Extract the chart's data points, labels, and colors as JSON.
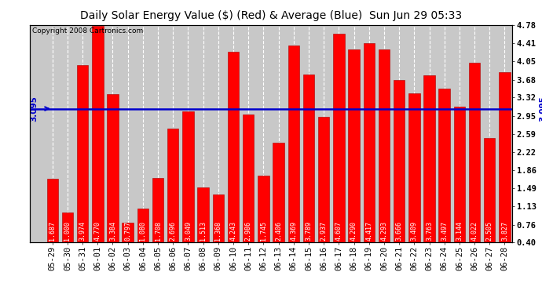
{
  "title": "Daily Solar Energy Value ($) (Red) & Average (Blue)  Sun Jun 29 05:33",
  "copyright": "Copyright 2008 Cartronics.com",
  "average": 3.095,
  "average_label": "3.095",
  "categories": [
    "05-29",
    "05-30",
    "05-31",
    "06-01",
    "06-02",
    "06-03",
    "06-04",
    "06-05",
    "06-06",
    "06-07",
    "06-08",
    "06-09",
    "06-10",
    "06-11",
    "06-12",
    "06-13",
    "06-14",
    "06-15",
    "06-16",
    "06-17",
    "06-18",
    "06-19",
    "06-20",
    "06-21",
    "06-22",
    "06-23",
    "06-24",
    "06-25",
    "06-26",
    "06-27",
    "06-28"
  ],
  "values": [
    1.687,
    1.0,
    3.974,
    4.77,
    3.384,
    0.797,
    1.08,
    1.708,
    2.696,
    3.049,
    1.513,
    1.368,
    4.243,
    2.986,
    1.745,
    2.406,
    4.369,
    3.789,
    2.937,
    4.607,
    4.29,
    4.417,
    4.293,
    3.666,
    3.409,
    3.763,
    3.497,
    3.144,
    4.022,
    2.505,
    3.827
  ],
  "bar_color": "#ff0000",
  "bar_edge_color": "#aa0000",
  "avg_line_color": "#0000cc",
  "bg_color": "#ffffff",
  "plot_bg_color": "#c8c8c8",
  "grid_color": "#ffffff",
  "title_color": "#000000",
  "y_right_ticks": [
    0.4,
    0.76,
    1.13,
    1.49,
    1.86,
    2.22,
    2.59,
    2.95,
    3.32,
    3.68,
    4.05,
    4.41,
    4.78
  ],
  "ylim": [
    0.4,
    4.78
  ],
  "title_fontsize": 10,
  "copyright_fontsize": 6.5,
  "tick_fontsize": 7.5,
  "value_fontsize": 6.0
}
